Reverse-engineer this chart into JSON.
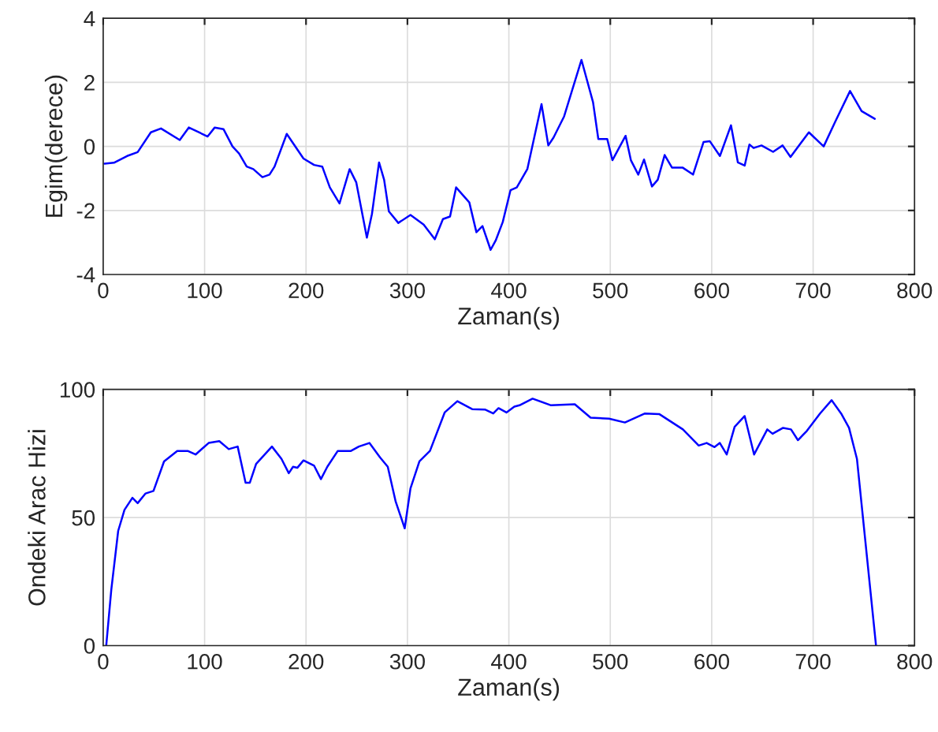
{
  "chart_data": [
    {
      "type": "line",
      "xlabel": "Zaman(s)",
      "ylabel": "Egim(derece)",
      "xlim": [
        0,
        800
      ],
      "ylim": [
        -4,
        4
      ],
      "xticks": [
        0,
        100,
        200,
        300,
        400,
        500,
        600,
        700,
        800
      ],
      "yticks": [
        -4,
        -2,
        0,
        2,
        4
      ],
      "grid": true,
      "series": [
        {
          "color": "#0000ff",
          "x": [
            1.3,
            10.6,
            23.6,
            34,
            47,
            57,
            75.5,
            84.4,
            103,
            110,
            118.6,
            127.5,
            134,
            141.5,
            148,
            157,
            164,
            169,
            181,
            197.5,
            208,
            216,
            223.5,
            233,
            243,
            249.5,
            260,
            265,
            272,
            277,
            281.7,
            291,
            303,
            316,
            327,
            335,
            342,
            348,
            361,
            368,
            374,
            382,
            387,
            394,
            401.6,
            407.8,
            418.2,
            432.2,
            438.9,
            444.1,
            454.5,
            471.6,
            483,
            488.2,
            497,
            502.1,
            515.1,
            520.3,
            527.6,
            533.3,
            541.1,
            546.8,
            553.6,
            560.8,
            571.2,
            581.6,
            592,
            598.2,
            608.1,
            619,
            625.8,
            632.5,
            637.2,
            641.3,
            649.1,
            660.5,
            669.9,
            677.7,
            695.8,
            710.4,
            721.8,
            736.4,
            747.8,
            760.8
          ],
          "values": [
            -0.54,
            -0.51,
            -0.3,
            -0.18,
            0.44,
            0.56,
            0.2,
            0.59,
            0.31,
            0.59,
            0.54,
            0.0,
            -0.22,
            -0.63,
            -0.71,
            -0.96,
            -0.88,
            -0.63,
            0.39,
            -0.38,
            -0.58,
            -0.63,
            -1.28,
            -1.78,
            -0.71,
            -1.12,
            -2.85,
            -2.11,
            -0.5,
            -1.04,
            -2.03,
            -2.39,
            -2.14,
            -2.44,
            -2.9,
            -2.27,
            -2.19,
            -1.28,
            -1.75,
            -2.68,
            -2.49,
            -3.23,
            -2.94,
            -2.36,
            -1.37,
            -1.28,
            -0.71,
            1.32,
            0.03,
            0.28,
            0.94,
            2.7,
            1.38,
            0.23,
            0.23,
            -0.43,
            0.33,
            -0.43,
            -0.88,
            -0.41,
            -1.25,
            -1.04,
            -0.27,
            -0.66,
            -0.66,
            -0.88,
            0.14,
            0.16,
            -0.3,
            0.66,
            -0.5,
            -0.6,
            0.06,
            -0.05,
            0.03,
            -0.17,
            0.03,
            -0.33,
            0.44,
            0.0,
            0.77,
            1.73,
            1.1,
            0.86
          ]
        }
      ]
    },
    {
      "type": "line",
      "xlabel": "Zaman(s)",
      "ylabel": "Ondeki Arac Hizi",
      "xlim": [
        0,
        800
      ],
      "ylim": [
        0,
        100
      ],
      "xticks": [
        0,
        100,
        200,
        300,
        400,
        500,
        600,
        700,
        800
      ],
      "yticks": [
        0,
        50,
        100
      ],
      "grid": true,
      "series": [
        {
          "color": "#0000ff",
          "x": [
            3,
            8,
            14.8,
            21,
            28.8,
            34,
            41.8,
            49.6,
            60,
            73,
            83.3,
            91.1,
            104,
            114.5,
            123.8,
            132.6,
            140.4,
            144.6,
            150.8,
            166.4,
            175.8,
            183,
            187.2,
            191.4,
            197.5,
            208,
            214.7,
            221,
            231.3,
            244.3,
            252.1,
            262.5,
            272.9,
            280.6,
            288.4,
            297.3,
            303,
            311.8,
            322.2,
            336.7,
            349.2,
            363.8,
            376.8,
            384.6,
            389.8,
            397.6,
            405.4,
            410.5,
            423.4,
            441.6,
            465,
            480.6,
            498.8,
            514.4,
            534.2,
            548.2,
            571.6,
            587.2,
            595,
            602.8,
            608,
            614.8,
            622.6,
            632.5,
            641.8,
            654.8,
            660,
            670.4,
            678.2,
            685,
            693.8,
            706.8,
            718.2,
            727.6,
            735.4,
            743.2,
            751,
            762
          ],
          "values": [
            0,
            21.8,
            44.8,
            53,
            57.7,
            55.6,
            59.4,
            60.4,
            71.9,
            76,
            76,
            74.6,
            79.1,
            79.8,
            76.7,
            77.7,
            63.6,
            63.6,
            70.9,
            77.7,
            72.9,
            67.3,
            69.8,
            69.4,
            72.3,
            70.2,
            65,
            69.8,
            76,
            76,
            77.7,
            79.1,
            73.5,
            69.8,
            56.2,
            45.8,
            61.4,
            71.9,
            76,
            91,
            95.4,
            92.3,
            92.1,
            90.6,
            92.7,
            91,
            93.3,
            93.8,
            96.4,
            93.8,
            94.2,
            89,
            88.6,
            87.1,
            90.6,
            90.4,
            84.4,
            78.1,
            79.1,
            77.5,
            79.1,
            74.6,
            85.4,
            89.6,
            74.6,
            84.4,
            82.7,
            85,
            84.4,
            80.2,
            83.8,
            90.6,
            95.8,
            90.6,
            85,
            72.9,
            42.7,
            0
          ]
        }
      ]
    }
  ]
}
